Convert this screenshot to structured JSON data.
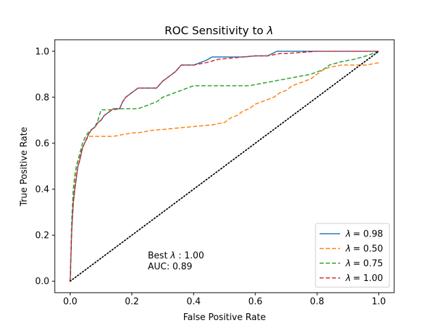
{
  "chart_data": {
    "type": "line",
    "title": "ROC Sensitivity to λ",
    "title_prefix": "ROC Sensitivity to",
    "title_symbol": "λ",
    "xlabel": "False Positive Rate",
    "ylabel": "True Positive Rate",
    "xlim": [
      -0.05,
      1.05
    ],
    "ylim": [
      -0.05,
      1.05
    ],
    "xticks": [
      0.0,
      0.2,
      0.4,
      0.6,
      0.8,
      1.0
    ],
    "xtick_labels": [
      "0.0",
      "0.2",
      "0.4",
      "0.6",
      "0.8",
      "1.0"
    ],
    "yticks": [
      0.0,
      0.2,
      0.4,
      0.6,
      0.8,
      1.0
    ],
    "ytick_labels": [
      "0.0",
      "0.2",
      "0.4",
      "0.6",
      "0.8",
      "1.0"
    ],
    "legend_position": "bottom-right",
    "annotation": {
      "best_prefix": "Best ",
      "best_symbol": "λ",
      "best_value": ": 1.00",
      "auc_text": "AUC: 0.89",
      "x": 0.25,
      "y": 0.05
    },
    "diagonal": {
      "x": [
        0,
        1
      ],
      "y": [
        0,
        1
      ],
      "color": "#000000",
      "style": "dotted"
    },
    "series": [
      {
        "name": "λ = 0.98",
        "legend_symbol": "λ",
        "legend_value": "= 0.98",
        "color": "#1f77b4",
        "style": "solid",
        "x": [
          0,
          0.005,
          0.01,
          0.015,
          0.02,
          0.025,
          0.03,
          0.04,
          0.05,
          0.06,
          0.07,
          0.08,
          0.09,
          0.1,
          0.11,
          0.12,
          0.13,
          0.14,
          0.15,
          0.16,
          0.17,
          0.18,
          0.19,
          0.2,
          0.21,
          0.22,
          0.24,
          0.26,
          0.28,
          0.3,
          0.32,
          0.33,
          0.34,
          0.36,
          0.38,
          0.4,
          0.44,
          0.46,
          0.5,
          0.56,
          0.6,
          0.64,
          0.67,
          0.7,
          0.8,
          0.9,
          1.0
        ],
        "y": [
          0,
          0.22,
          0.34,
          0.4,
          0.45,
          0.5,
          0.52,
          0.58,
          0.61,
          0.64,
          0.66,
          0.67,
          0.69,
          0.7,
          0.72,
          0.73,
          0.74,
          0.75,
          0.75,
          0.75,
          0.78,
          0.8,
          0.81,
          0.82,
          0.83,
          0.84,
          0.84,
          0.84,
          0.84,
          0.87,
          0.89,
          0.9,
          0.91,
          0.94,
          0.94,
          0.94,
          0.96,
          0.975,
          0.975,
          0.975,
          0.98,
          0.98,
          1.0,
          1.0,
          1.0,
          1.0,
          1.0
        ]
      },
      {
        "name": "λ = 0.50",
        "legend_symbol": "λ",
        "legend_value": "= 0.50",
        "color": "#ff7f0e",
        "style": "dashed",
        "x": [
          0,
          0.005,
          0.01,
          0.015,
          0.02,
          0.03,
          0.04,
          0.05,
          0.06,
          0.08,
          0.1,
          0.14,
          0.18,
          0.2,
          0.22,
          0.26,
          0.3,
          0.34,
          0.38,
          0.42,
          0.46,
          0.5,
          0.52,
          0.54,
          0.56,
          0.58,
          0.6,
          0.62,
          0.64,
          0.66,
          0.68,
          0.7,
          0.72,
          0.74,
          0.76,
          0.78,
          0.8,
          0.82,
          0.84,
          0.88,
          0.92,
          0.96,
          1.0
        ],
        "y": [
          0,
          0.24,
          0.38,
          0.44,
          0.5,
          0.54,
          0.58,
          0.61,
          0.63,
          0.63,
          0.63,
          0.63,
          0.64,
          0.645,
          0.645,
          0.655,
          0.66,
          0.665,
          0.67,
          0.675,
          0.68,
          0.69,
          0.71,
          0.72,
          0.74,
          0.75,
          0.77,
          0.78,
          0.79,
          0.8,
          0.82,
          0.83,
          0.85,
          0.86,
          0.87,
          0.88,
          0.9,
          0.92,
          0.93,
          0.94,
          0.94,
          0.94,
          0.95
        ]
      },
      {
        "name": "λ = 0.75",
        "legend_symbol": "λ",
        "legend_value": "= 0.75",
        "color": "#2ca02c",
        "style": "dashed",
        "x": [
          0,
          0.005,
          0.01,
          0.015,
          0.02,
          0.03,
          0.04,
          0.05,
          0.06,
          0.07,
          0.08,
          0.09,
          0.1,
          0.12,
          0.14,
          0.16,
          0.18,
          0.2,
          0.22,
          0.24,
          0.26,
          0.28,
          0.3,
          0.32,
          0.34,
          0.36,
          0.38,
          0.4,
          0.46,
          0.5,
          0.54,
          0.58,
          0.62,
          0.66,
          0.7,
          0.74,
          0.78,
          0.82,
          0.84,
          0.88,
          0.92,
          0.96,
          1.0
        ],
        "y": [
          0,
          0.26,
          0.4,
          0.46,
          0.5,
          0.55,
          0.6,
          0.63,
          0.65,
          0.66,
          0.67,
          0.7,
          0.745,
          0.745,
          0.745,
          0.75,
          0.75,
          0.75,
          0.75,
          0.76,
          0.77,
          0.78,
          0.8,
          0.81,
          0.82,
          0.83,
          0.84,
          0.85,
          0.85,
          0.85,
          0.85,
          0.85,
          0.86,
          0.87,
          0.88,
          0.89,
          0.9,
          0.92,
          0.94,
          0.955,
          0.965,
          0.98,
          1.0
        ]
      },
      {
        "name": "λ = 1.00",
        "legend_symbol": "λ",
        "legend_value": "= 1.00",
        "color": "#d62728",
        "style": "dashed",
        "x": [
          0,
          0.005,
          0.01,
          0.015,
          0.02,
          0.025,
          0.03,
          0.04,
          0.05,
          0.06,
          0.07,
          0.08,
          0.09,
          0.1,
          0.11,
          0.12,
          0.13,
          0.14,
          0.15,
          0.16,
          0.17,
          0.18,
          0.19,
          0.2,
          0.21,
          0.22,
          0.24,
          0.26,
          0.28,
          0.3,
          0.32,
          0.34,
          0.36,
          0.38,
          0.4,
          0.44,
          0.48,
          0.52,
          0.56,
          0.6,
          0.64,
          0.68,
          0.7,
          0.8,
          0.9,
          1.0
        ],
        "y": [
          0,
          0.22,
          0.34,
          0.4,
          0.45,
          0.5,
          0.52,
          0.58,
          0.61,
          0.64,
          0.66,
          0.67,
          0.69,
          0.7,
          0.72,
          0.73,
          0.74,
          0.75,
          0.75,
          0.75,
          0.78,
          0.8,
          0.81,
          0.82,
          0.83,
          0.84,
          0.84,
          0.84,
          0.84,
          0.87,
          0.89,
          0.91,
          0.94,
          0.94,
          0.94,
          0.95,
          0.965,
          0.97,
          0.975,
          0.98,
          0.98,
          0.99,
          0.99,
          1.0,
          1.0,
          1.0
        ]
      }
    ]
  }
}
